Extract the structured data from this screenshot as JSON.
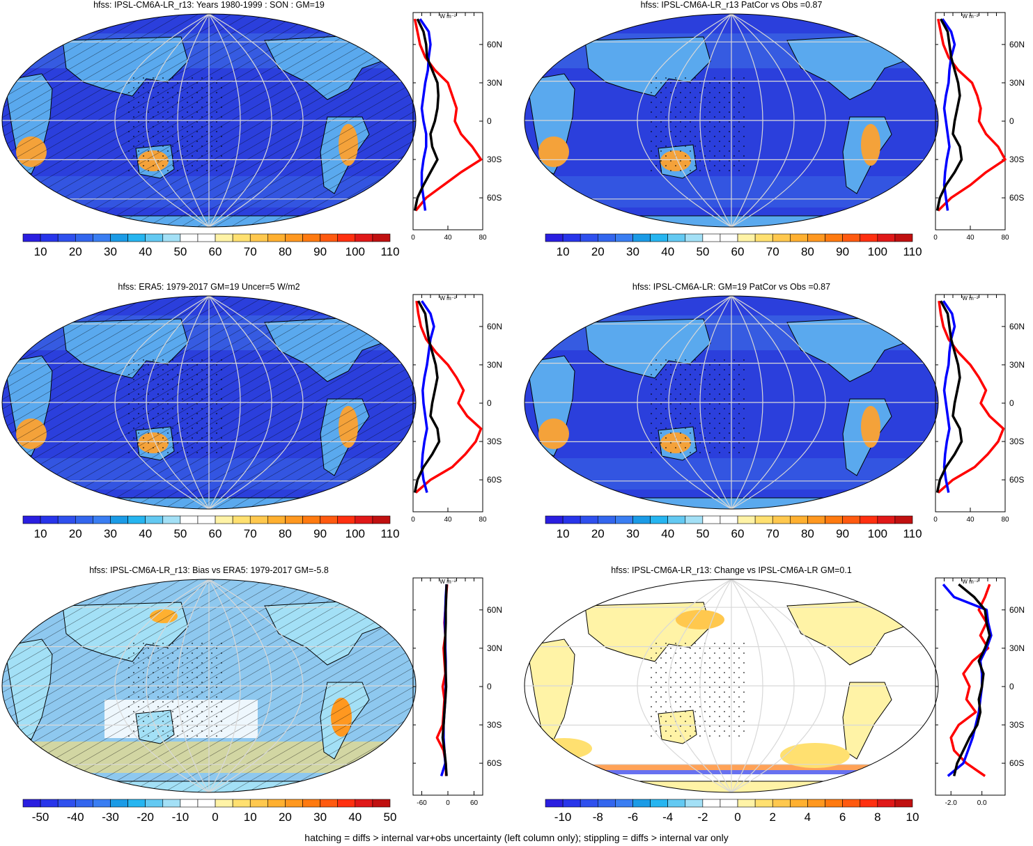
{
  "footer": "hatching = diffs > internal var+obs uncertainty (left column only); stippling = diffs > internal var only",
  "colors": {
    "ocean": "#2b3fdc",
    "ocean_light": "#3f72e6",
    "land_low": "#5aa9ee",
    "land_hot": "#f4a23a",
    "profile_model": "#000000",
    "profile_obs": "#ff0000",
    "profile_ref": "#0000ff"
  },
  "colorbars": {
    "abs": {
      "labels": [
        "10",
        "20",
        "30",
        "40",
        "50",
        "60",
        "70",
        "80",
        "90",
        "100",
        "110"
      ],
      "colors": [
        "#2a1ee0",
        "#2835ea",
        "#2f50ee",
        "#3366ee",
        "#3a7ef2",
        "#1b9be6",
        "#26b5f0",
        "#63c9f2",
        "#a3e0f6",
        "#ffffff",
        "#ffffff",
        "#fff3a6",
        "#ffe070",
        "#ffc84e",
        "#ffb030",
        "#ff9820",
        "#ff7a10",
        "#ff5a10",
        "#ff3010",
        "#e01818",
        "#c01010"
      ]
    },
    "diff50": {
      "labels": [
        "-50",
        "-40",
        "-30",
        "-20",
        "-10",
        "0",
        "10",
        "20",
        "30",
        "40",
        "50"
      ],
      "colors": [
        "#2a1ee0",
        "#2835ea",
        "#2f50ee",
        "#3366ee",
        "#3a7ef2",
        "#1b9be6",
        "#26b5f0",
        "#63c9f2",
        "#a3e0f6",
        "#ffffff",
        "#ffffff",
        "#fff3a6",
        "#ffe070",
        "#ffc84e",
        "#ffb030",
        "#ff9820",
        "#ff7a10",
        "#ff5a10",
        "#ff3010",
        "#e01818",
        "#c01010"
      ]
    },
    "diff10": {
      "labels": [
        "-10",
        "-8",
        "-6",
        "-4",
        "-2",
        "0",
        "2",
        "4",
        "6",
        "8",
        "10"
      ],
      "colors": [
        "#2a1ee0",
        "#2835ea",
        "#2f50ee",
        "#3366ee",
        "#3a7ef2",
        "#1b9be6",
        "#26b5f0",
        "#63c9f2",
        "#a3e0f6",
        "#ffffff",
        "#ffffff",
        "#fff3a6",
        "#ffe070",
        "#ffc84e",
        "#ffb030",
        "#ff9820",
        "#ff7a10",
        "#ff5a10",
        "#ff3010",
        "#e01818",
        "#c01010"
      ]
    }
  },
  "chart_data": [
    {
      "type": "heatmap",
      "title": "hfss: IPSL-CM6A-LR_r13: Years 1980-1999 : SON : GM=19",
      "colorbar": "abs",
      "hatched": true,
      "profile": {
        "unit": "W m⁻²",
        "xticks": [
          "0",
          "40",
          "80"
        ],
        "xlim": [
          0,
          80
        ],
        "yticks": [
          "60N",
          "30N",
          "0",
          "30S",
          "60S"
        ],
        "lat": [
          80,
          70,
          60,
          50,
          40,
          30,
          20,
          10,
          0,
          -10,
          -20,
          -30,
          -40,
          -50,
          -60,
          -70
        ],
        "series": [
          {
            "role": "model",
            "values": [
              5,
              12,
              15,
              16,
              22,
              28,
              29,
              28,
              25,
              20,
              22,
              28,
              20,
              12,
              5,
              2
            ]
          },
          {
            "role": "obs",
            "values": [
              2,
              5,
              8,
              14,
              25,
              40,
              45,
              50,
              48,
              55,
              68,
              78,
              55,
              35,
              15,
              3
            ]
          },
          {
            "role": "ref",
            "values": [
              8,
              18,
              20,
              18,
              17,
              14,
              12,
              10,
              12,
              15,
              15,
              12,
              10,
              10,
              12,
              14
            ]
          }
        ]
      }
    },
    {
      "type": "heatmap",
      "title": "hfss: IPSL-CM6A-LR_r13 PatCor vs Obs =0.87",
      "colorbar": "abs",
      "hatched": false,
      "profile": {
        "unit": "W m⁻²",
        "xticks": [
          "0",
          "40",
          "80"
        ],
        "xlim": [
          0,
          80
        ],
        "yticks": [
          "60N",
          "30N",
          "0",
          "30S",
          "60S"
        ],
        "lat": [
          80,
          70,
          60,
          50,
          40,
          30,
          20,
          10,
          0,
          -10,
          -20,
          -30,
          -40,
          -50,
          -60,
          -70
        ],
        "series": [
          {
            "role": "model",
            "values": [
              6,
              14,
              16,
              18,
              22,
              26,
              28,
              25,
              22,
              20,
              28,
              30,
              22,
              12,
              5,
              2
            ]
          },
          {
            "role": "obs",
            "values": [
              3,
              6,
              9,
              15,
              26,
              42,
              48,
              52,
              50,
              58,
              72,
              80,
              58,
              40,
              18,
              3
            ]
          },
          {
            "role": "ref",
            "values": [
              8,
              18,
              22,
              18,
              16,
              15,
              12,
              10,
              12,
              14,
              16,
              13,
              11,
              10,
              12,
              14
            ]
          }
        ]
      }
    },
    {
      "type": "heatmap",
      "title": "hfss: ERA5: 1979-2017 GM=19 Uncer=5 W/m2",
      "colorbar": "abs",
      "hatched": true,
      "profile": {
        "unit": "W m⁻²",
        "xticks": [
          "0",
          "40",
          "80"
        ],
        "xlim": [
          0,
          80
        ],
        "yticks": [
          "60N",
          "30N",
          "0",
          "30S",
          "60S"
        ],
        "lat": [
          80,
          70,
          60,
          50,
          40,
          30,
          20,
          10,
          0,
          -10,
          -20,
          -30,
          -40,
          -50,
          -60,
          -70
        ],
        "series": [
          {
            "role": "model",
            "values": [
              6,
              14,
              16,
              18,
              22,
              26,
              28,
              25,
              22,
              20,
              28,
              30,
              22,
              12,
              5,
              2
            ]
          },
          {
            "role": "obs",
            "values": [
              4,
              6,
              9,
              15,
              26,
              40,
              50,
              58,
              52,
              62,
              78,
              72,
              60,
              45,
              20,
              3
            ]
          },
          {
            "role": "ref",
            "values": [
              10,
              20,
              24,
              20,
              18,
              16,
              13,
              11,
              12,
              14,
              16,
              13,
              11,
              10,
              12,
              16
            ]
          }
        ]
      }
    },
    {
      "type": "heatmap",
      "title": "hfss: IPSL-CM6A-LR: GM=19 PatCor vs Obs =0.87",
      "colorbar": "abs",
      "hatched": false,
      "profile": {
        "unit": "W m⁻²",
        "xticks": [
          "0",
          "40",
          "80"
        ],
        "xlim": [
          0,
          80
        ],
        "yticks": [
          "60N",
          "30N",
          "0",
          "30S",
          "60S"
        ],
        "lat": [
          80,
          70,
          60,
          50,
          40,
          30,
          20,
          10,
          0,
          -10,
          -20,
          -30,
          -40,
          -50,
          -60,
          -70
        ],
        "series": [
          {
            "role": "model",
            "values": [
              6,
              14,
              16,
              18,
              22,
              26,
              28,
              25,
              22,
              20,
              28,
              30,
              22,
              12,
              5,
              2
            ]
          },
          {
            "role": "obs",
            "values": [
              4,
              6,
              9,
              15,
              26,
              40,
              50,
              58,
              52,
              62,
              78,
              72,
              60,
              45,
              20,
              3
            ]
          },
          {
            "role": "ref",
            "values": [
              9,
              19,
              22,
              18,
              16,
              15,
              12,
              10,
              12,
              14,
              16,
              13,
              11,
              10,
              12,
              15
            ]
          }
        ]
      }
    },
    {
      "type": "heatmap",
      "title": "hfss: IPSL-CM6A-LR_r13: Bias vs ERA5: 1979-2017  GM=-5.8",
      "colorbar": "diff50",
      "hatched": true,
      "profile": {
        "unit": "W m⁻²",
        "xticks": [
          "-60",
          "0",
          "60"
        ],
        "xlim": [
          -80,
          80
        ],
        "yticks": [
          "60N",
          "30N",
          "0",
          "30S",
          "60S"
        ],
        "lat": [
          80,
          70,
          60,
          50,
          40,
          30,
          20,
          10,
          0,
          -10,
          -20,
          -30,
          -40,
          -50,
          -60,
          -70
        ],
        "series": [
          {
            "role": "model",
            "values": [
              -3,
              -4,
              -5,
              -5,
              -6,
              -7,
              -6,
              -5,
              -4,
              -6,
              -8,
              -10,
              -12,
              -8,
              -5,
              -3
            ]
          },
          {
            "role": "obs",
            "values": [
              -2,
              -4,
              -6,
              -8,
              -6,
              -10,
              -8,
              -6,
              -12,
              -8,
              -10,
              -12,
              -25,
              -10,
              -5,
              -4
            ]
          },
          {
            "role": "ref",
            "values": [
              -3,
              -5,
              -6,
              -7,
              -6,
              -6,
              -5,
              -5,
              -5,
              -6,
              -8,
              -10,
              -10,
              -8,
              -6,
              -15
            ]
          }
        ]
      }
    },
    {
      "type": "heatmap",
      "title": "hfss: IPSL-CM6A-LR_r13: Change vs IPSL-CM6A-LR GM=0.1",
      "colorbar": "diff10",
      "hatched": false,
      "profile": {
        "unit": "W m⁻²",
        "xticks": [
          "-2.0",
          "0.0"
        ],
        "xlim": [
          -3,
          1.5
        ],
        "yticks": [
          "60N",
          "30N",
          "0",
          "30S",
          "60S"
        ],
        "lat": [
          80,
          70,
          60,
          50,
          40,
          30,
          20,
          10,
          0,
          -10,
          -20,
          -30,
          -40,
          -50,
          -60,
          -70
        ],
        "series": [
          {
            "role": "model",
            "values": [
              -1.5,
              -0.5,
              0.2,
              0.3,
              0.5,
              0.2,
              -0.2,
              0.1,
              0.0,
              -0.2,
              -0.1,
              -0.3,
              -0.8,
              -1.2,
              -1.6,
              -1.8
            ]
          },
          {
            "role": "obs",
            "values": [
              0.5,
              0.2,
              -0.2,
              0.3,
              -0.1,
              0.4,
              -0.6,
              -1.2,
              -0.8,
              -1.0,
              -0.4,
              -1.5,
              -2.0,
              -1.8,
              -1.0,
              0.2
            ]
          },
          {
            "role": "ref",
            "values": [
              -2.5,
              -1.8,
              0.3,
              0.4,
              0.6,
              0.3,
              -0.1,
              0.0,
              0.0,
              -0.1,
              -0.2,
              -0.4,
              -0.6,
              -0.9,
              -1.2,
              -2.2
            ]
          }
        ]
      }
    }
  ]
}
